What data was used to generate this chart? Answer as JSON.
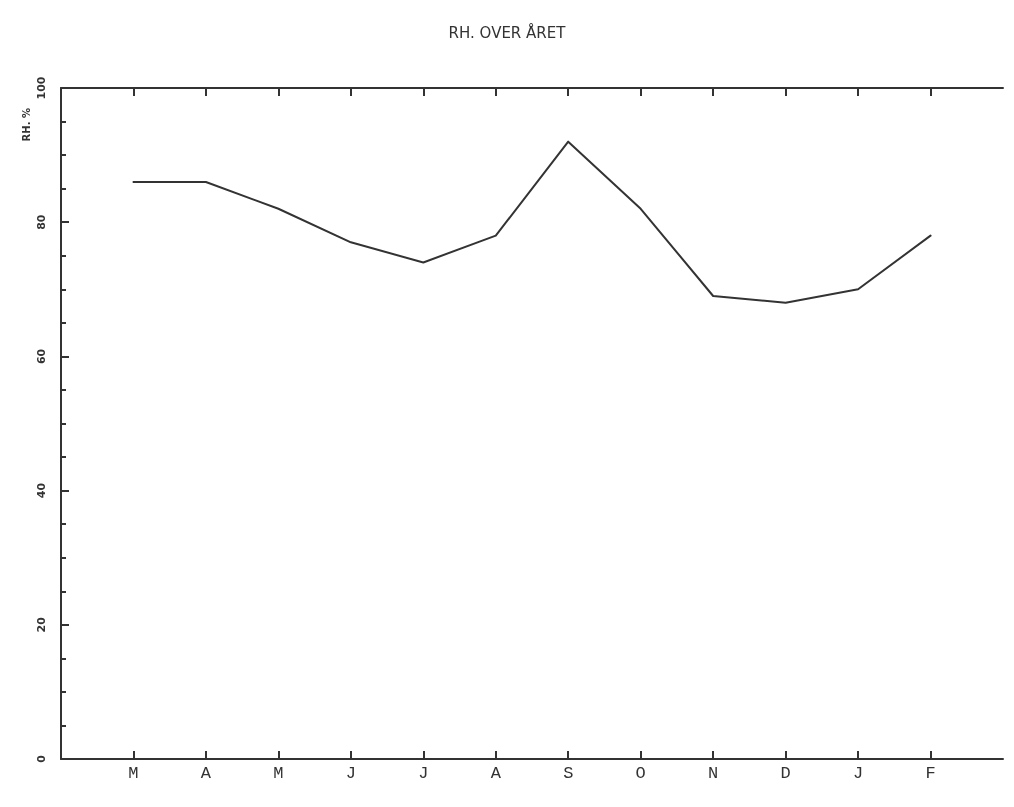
{
  "chart_data": {
    "type": "line",
    "title": "RH. OVER ÅRET",
    "ylabel": "RH. %",
    "categories": [
      "M",
      "A",
      "M",
      "J",
      "J",
      "A",
      "S",
      "O",
      "N",
      "D",
      "J",
      "F"
    ],
    "series": [
      {
        "color": "#333333",
        "values": [
          86,
          86,
          82,
          77,
          74,
          78,
          92,
          82,
          69,
          68,
          70,
          78
        ]
      }
    ],
    "ylim": [
      0,
      100
    ],
    "yticks": [
      0,
      20,
      40,
      60,
      80,
      100
    ],
    "grid": false,
    "marker": "none",
    "line_style": "solid"
  }
}
